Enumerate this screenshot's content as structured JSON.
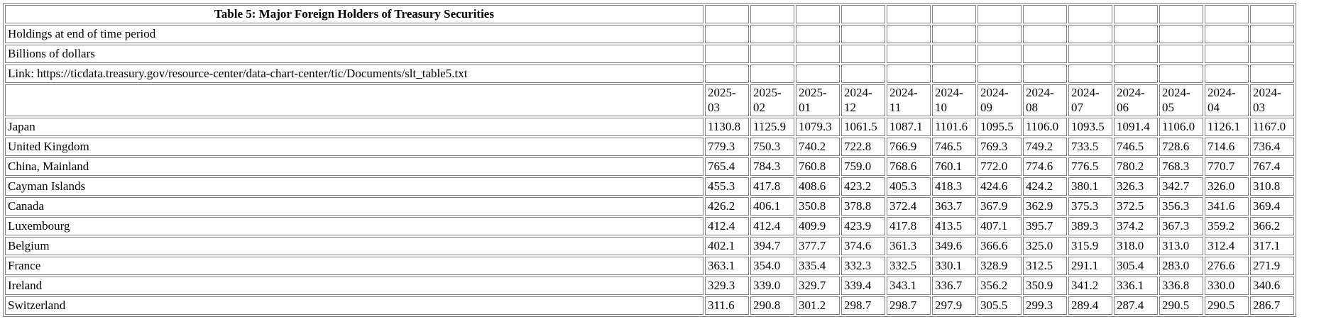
{
  "page": {
    "background": "#ffffff",
    "text_color": "#000000",
    "border_color": "#7f7f7f"
  },
  "chart_data": {
    "type": "table",
    "title": "Table 5: Major Foreign Holders of Treasury Securities",
    "meta_rows": [
      "Holdings at end of time period",
      "Billions of dollars",
      "Link: https://ticdata.treasury.gov/resource-center/data-chart-center/tic/Documents/slt_table5.txt"
    ],
    "categories": [
      "2025-03",
      "2025-02",
      "2025-01",
      "2024-12",
      "2024-11",
      "2024-10",
      "2024-09",
      "2024-08",
      "2024-07",
      "2024-06",
      "2024-05",
      "2024-04",
      "2024-03"
    ],
    "series": [
      {
        "name": "Japan",
        "values": [
          1130.8,
          1125.9,
          1079.3,
          1061.5,
          1087.1,
          1101.6,
          1095.5,
          1106.0,
          1093.5,
          1091.4,
          1106.0,
          1126.1,
          1167.0
        ]
      },
      {
        "name": "United Kingdom",
        "values": [
          779.3,
          750.3,
          740.2,
          722.8,
          766.9,
          746.5,
          769.3,
          749.2,
          733.5,
          746.5,
          728.6,
          714.6,
          736.4
        ]
      },
      {
        "name": "China, Mainland",
        "values": [
          765.4,
          784.3,
          760.8,
          759.0,
          768.6,
          760.1,
          772.0,
          774.6,
          776.5,
          780.2,
          768.3,
          770.7,
          767.4
        ]
      },
      {
        "name": "Cayman Islands",
        "values": [
          455.3,
          417.8,
          408.6,
          423.2,
          405.3,
          418.3,
          424.6,
          424.2,
          380.1,
          326.3,
          342.7,
          326.0,
          310.8
        ]
      },
      {
        "name": "Canada",
        "values": [
          426.2,
          406.1,
          350.8,
          378.8,
          372.4,
          363.7,
          367.9,
          362.9,
          375.3,
          372.5,
          356.3,
          341.6,
          369.4
        ]
      },
      {
        "name": "Luxembourg",
        "values": [
          412.4,
          412.4,
          409.9,
          423.9,
          417.8,
          413.5,
          407.1,
          395.7,
          389.3,
          374.2,
          367.3,
          359.2,
          366.2
        ]
      },
      {
        "name": "Belgium",
        "values": [
          402.1,
          394.7,
          377.7,
          374.6,
          361.3,
          349.6,
          366.6,
          325.0,
          315.9,
          318.0,
          313.0,
          312.4,
          317.1
        ]
      },
      {
        "name": "France",
        "values": [
          363.1,
          354.0,
          335.4,
          332.3,
          332.5,
          330.1,
          328.9,
          312.5,
          291.1,
          305.4,
          283.0,
          276.6,
          271.9
        ]
      },
      {
        "name": "Ireland",
        "values": [
          329.3,
          339.0,
          329.7,
          339.4,
          343.1,
          336.7,
          356.2,
          350.9,
          341.2,
          336.1,
          336.8,
          330.0,
          340.6
        ]
      },
      {
        "name": "Switzerland",
        "values": [
          311.6,
          290.8,
          301.2,
          298.7,
          298.7,
          297.9,
          305.5,
          299.3,
          289.4,
          287.4,
          290.5,
          290.5,
          286.7
        ]
      }
    ]
  }
}
